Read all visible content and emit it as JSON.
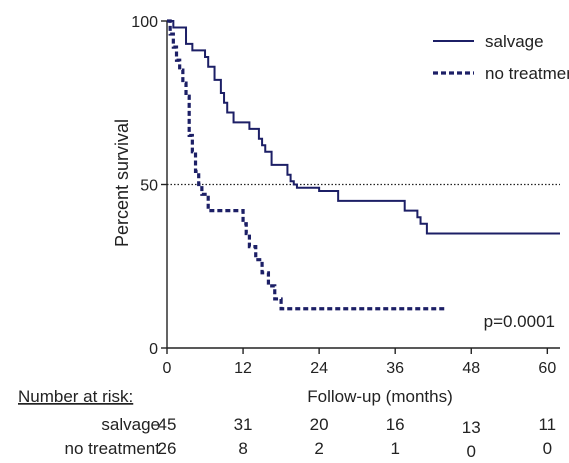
{
  "chart_data": {
    "type": "line",
    "step": true,
    "xlabel": "Follow-up (months)",
    "ylabel": "Percent survival",
    "xlim": [
      0,
      62
    ],
    "ylim": [
      0,
      100
    ],
    "xticks": [
      0,
      12,
      24,
      36,
      48,
      60
    ],
    "yticks": [
      0,
      50,
      100
    ],
    "reference_line": {
      "y": 50,
      "style": "dotted"
    },
    "legend_position": "top-right",
    "annotation": "p=0.0001",
    "colors": {
      "series": "#1c1f66",
      "reference": "#222222"
    },
    "series": [
      {
        "name": "salvage",
        "style": "solid",
        "points": [
          [
            0,
            100
          ],
          [
            1,
            98
          ],
          [
            3,
            93
          ],
          [
            4,
            91
          ],
          [
            6,
            89
          ],
          [
            6.5,
            86
          ],
          [
            7.5,
            82
          ],
          [
            8.5,
            78
          ],
          [
            9,
            75
          ],
          [
            9.5,
            72
          ],
          [
            10.5,
            69
          ],
          [
            13,
            67
          ],
          [
            14.5,
            64
          ],
          [
            15,
            62
          ],
          [
            15.5,
            60
          ],
          [
            16.5,
            56
          ],
          [
            19,
            53
          ],
          [
            19.5,
            51
          ],
          [
            20,
            50
          ],
          [
            20.5,
            49
          ],
          [
            24,
            48
          ],
          [
            27,
            45
          ],
          [
            31,
            45
          ],
          [
            37.5,
            42
          ],
          [
            39.5,
            40
          ],
          [
            40,
            38
          ],
          [
            41,
            35
          ],
          [
            62,
            35
          ]
        ]
      },
      {
        "name": "no treatment",
        "style": "dashed",
        "points": [
          [
            0,
            100
          ],
          [
            0.5,
            96
          ],
          [
            1,
            92
          ],
          [
            1.5,
            88
          ],
          [
            2,
            85
          ],
          [
            2.5,
            81
          ],
          [
            3,
            77
          ],
          [
            3.5,
            65
          ],
          [
            4,
            60
          ],
          [
            4.5,
            54
          ],
          [
            5,
            50
          ],
          [
            5.5,
            47
          ],
          [
            6.5,
            42
          ],
          [
            11,
            42
          ],
          [
            12,
            38
          ],
          [
            12.5,
            35
          ],
          [
            13,
            31
          ],
          [
            14,
            27
          ],
          [
            15,
            23
          ],
          [
            16,
            19
          ],
          [
            17,
            15
          ],
          [
            18,
            12
          ],
          [
            44,
            12
          ]
        ]
      }
    ]
  },
  "risk_table": {
    "title": "Number at risk:",
    "times": [
      0,
      12,
      24,
      36,
      48,
      60
    ],
    "rows": [
      {
        "label": "salvage",
        "values": [
          "45",
          "31",
          "20",
          "16",
          "13",
          "11"
        ]
      },
      {
        "label": "no treatment",
        "values": [
          "26",
          "8",
          "2",
          "1",
          "0",
          "0"
        ]
      }
    ]
  }
}
